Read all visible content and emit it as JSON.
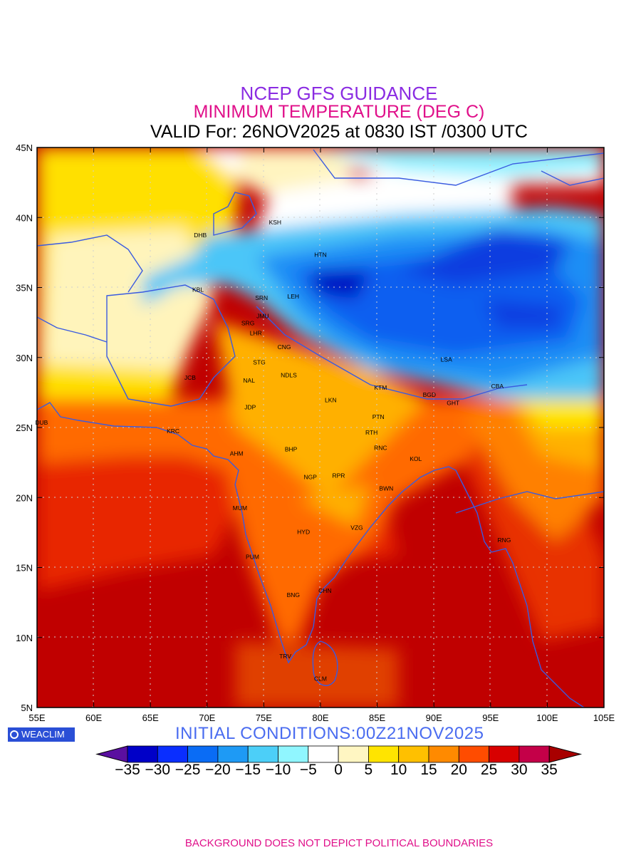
{
  "header": {
    "line1": "NCEP GFS GUIDANCE",
    "line2": "MINIMUM TEMPERATURE (DEG C)",
    "line3": "VALID For: 26NOV2025 at 0830 IST /0300 UTC"
  },
  "axes": {
    "lat_labels": [
      "45N",
      "40N",
      "35N",
      "30N",
      "25N",
      "20N",
      "15N",
      "10N",
      "5N"
    ],
    "lon_labels": [
      "55E",
      "60E",
      "65E",
      "70E",
      "75E",
      "80E",
      "85E",
      "90E",
      "95E",
      "100E",
      "105E"
    ]
  },
  "stations": [
    {
      "code": "DHB",
      "lon": 69.4,
      "lat": 38.6
    },
    {
      "code": "KSH",
      "lon": 76.0,
      "lat": 39.5
    },
    {
      "code": "HTN",
      "lon": 80.0,
      "lat": 37.2
    },
    {
      "code": "KBL",
      "lon": 69.2,
      "lat": 34.7
    },
    {
      "code": "SRN",
      "lon": 74.8,
      "lat": 34.1
    },
    {
      "code": "LEH",
      "lon": 77.6,
      "lat": 34.2
    },
    {
      "code": "JMU",
      "lon": 74.9,
      "lat": 32.8
    },
    {
      "code": "SRG",
      "lon": 73.6,
      "lat": 32.3
    },
    {
      "code": "LHR",
      "lon": 74.3,
      "lat": 31.6
    },
    {
      "code": "CNG",
      "lon": 76.8,
      "lat": 30.6
    },
    {
      "code": "STG",
      "lon": 74.6,
      "lat": 29.5
    },
    {
      "code": "NDLS",
      "lon": 77.2,
      "lat": 28.6
    },
    {
      "code": "NAL",
      "lon": 73.7,
      "lat": 28.2
    },
    {
      "code": "JCB",
      "lon": 68.5,
      "lat": 28.4
    },
    {
      "code": "LSA",
      "lon": 91.1,
      "lat": 29.7
    },
    {
      "code": "KTM",
      "lon": 85.3,
      "lat": 27.7
    },
    {
      "code": "BGD",
      "lon": 89.6,
      "lat": 27.2
    },
    {
      "code": "CBA",
      "lon": 95.6,
      "lat": 27.8
    },
    {
      "code": "GHT",
      "lon": 91.7,
      "lat": 26.6
    },
    {
      "code": "LKN",
      "lon": 80.9,
      "lat": 26.8
    },
    {
      "code": "JDP",
      "lon": 73.8,
      "lat": 26.3
    },
    {
      "code": "PTN",
      "lon": 85.1,
      "lat": 25.6
    },
    {
      "code": "DUB",
      "lon": 55.4,
      "lat": 25.2
    },
    {
      "code": "KRC",
      "lon": 67.0,
      "lat": 24.6
    },
    {
      "code": "RTH",
      "lon": 84.5,
      "lat": 24.5
    },
    {
      "code": "AHM",
      "lon": 72.6,
      "lat": 23.0
    },
    {
      "code": "BHP",
      "lon": 77.4,
      "lat": 23.3
    },
    {
      "code": "RNC",
      "lon": 85.3,
      "lat": 23.4
    },
    {
      "code": "KOL",
      "lon": 88.4,
      "lat": 22.6
    },
    {
      "code": "NGP",
      "lon": 79.1,
      "lat": 21.3
    },
    {
      "code": "RPR",
      "lon": 81.6,
      "lat": 21.4
    },
    {
      "code": "BWN",
      "lon": 85.8,
      "lat": 20.5
    },
    {
      "code": "MUM",
      "lon": 72.9,
      "lat": 19.1
    },
    {
      "code": "HYD",
      "lon": 78.5,
      "lat": 17.4
    },
    {
      "code": "VZG",
      "lon": 83.2,
      "lat": 17.7
    },
    {
      "code": "RNG",
      "lon": 96.2,
      "lat": 16.8
    },
    {
      "code": "PUM",
      "lon": 74.0,
      "lat": 15.6
    },
    {
      "code": "CHN",
      "lon": 80.4,
      "lat": 13.2
    },
    {
      "code": "BNG",
      "lon": 77.6,
      "lat": 12.9
    },
    {
      "code": "TRV",
      "lon": 76.9,
      "lat": 8.5
    },
    {
      "code": "CLM",
      "lon": 80.0,
      "lat": 6.9
    }
  ],
  "temperature_field": [
    {
      "region": "north-west-plateau",
      "temp_c": 6
    },
    {
      "region": "tibetan-plateau",
      "temp_c": -22
    },
    {
      "region": "tarim-basin",
      "temp_c": -3
    },
    {
      "region": "indo-gangetic-plain",
      "temp_c": 17
    },
    {
      "region": "peninsular-india",
      "temp_c": 21
    },
    {
      "region": "arabian-sea",
      "temp_c": 27
    },
    {
      "region": "bay-of-bengal",
      "temp_c": 27
    },
    {
      "region": "myanmar",
      "temp_c": 21
    },
    {
      "region": "yunnan",
      "temp_c": 8
    }
  ],
  "colorbar": {
    "colors": [
      "#5a0fa0",
      "#0000c8",
      "#0a2eff",
      "#0a6cf5",
      "#1e9af5",
      "#4ccff8",
      "#90f6ff",
      "#ffffff",
      "#fff6c2",
      "#ffe400",
      "#ffc000",
      "#ff8a00",
      "#ff4c00",
      "#d80000",
      "#c40048",
      "#a80000"
    ],
    "labels": [
      "−35",
      "−30",
      "−25",
      "−20",
      "−15",
      "−10",
      "−5",
      "0",
      "5",
      "10",
      "15",
      "20",
      "25",
      "30",
      "35"
    ]
  },
  "logo_text": "WEACLIM",
  "initial_conditions": "INITIAL  CONDITIONS:00Z21NOV2025",
  "footer": "BACKGROUND DOES NOT DEPICT POLITICAL BOUNDARIES",
  "colors": {
    "grid": "#cfcfcf",
    "coast": "#3a5be0"
  }
}
